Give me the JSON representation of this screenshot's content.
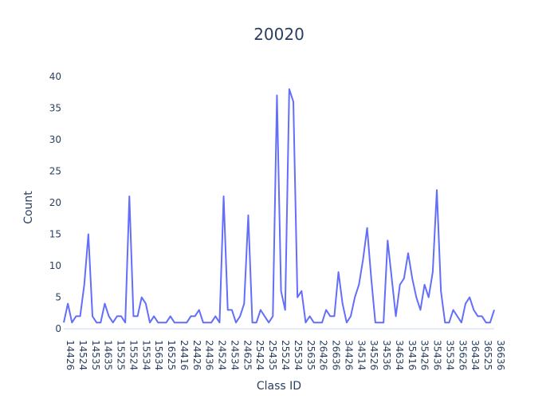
{
  "chart_data": {
    "type": "line",
    "title": "20020",
    "xlabel": "Class ID",
    "ylabel": "Count",
    "ylim": [
      -1,
      42
    ],
    "y_ticks": [
      0,
      5,
      10,
      15,
      20,
      25,
      30,
      35,
      40
    ],
    "grid": false,
    "series": [
      {
        "color": "#636efa",
        "values": [
          1,
          4,
          1,
          2,
          2,
          7,
          15,
          2,
          1,
          1,
          4,
          2,
          1,
          2,
          2,
          1,
          21,
          2,
          2,
          5,
          4,
          1,
          2,
          1,
          1,
          1,
          2,
          1,
          1,
          1,
          1,
          2,
          2,
          3,
          1,
          1,
          1,
          2,
          1,
          21,
          3,
          3,
          1,
          2,
          4,
          18,
          1,
          1,
          3,
          2,
          1,
          2,
          37,
          6,
          3,
          38,
          36,
          5,
          6,
          1,
          2,
          1,
          1,
          1,
          3,
          2,
          2,
          9,
          4,
          1,
          2,
          5,
          7,
          11,
          16,
          8,
          1,
          1,
          1,
          14,
          8,
          2,
          7,
          8,
          12,
          8,
          5,
          3,
          7,
          5,
          9,
          22,
          6,
          1,
          1,
          3,
          2,
          1,
          4,
          5,
          3,
          2,
          2,
          1,
          1,
          3
        ]
      }
    ],
    "x_tick_labels": [
      "14426",
      "14524",
      "14535",
      "14635",
      "15525",
      "15524",
      "15534",
      "15634",
      "16525",
      "24416",
      "24426",
      "24436",
      "24524",
      "24534",
      "24625",
      "25424",
      "25435",
      "25524",
      "25534",
      "25635",
      "26426",
      "26636",
      "34426",
      "34514",
      "34526",
      "34536",
      "34634",
      "35416",
      "35426",
      "35436",
      "35534",
      "35626",
      "36434",
      "36525",
      "36636"
    ]
  }
}
